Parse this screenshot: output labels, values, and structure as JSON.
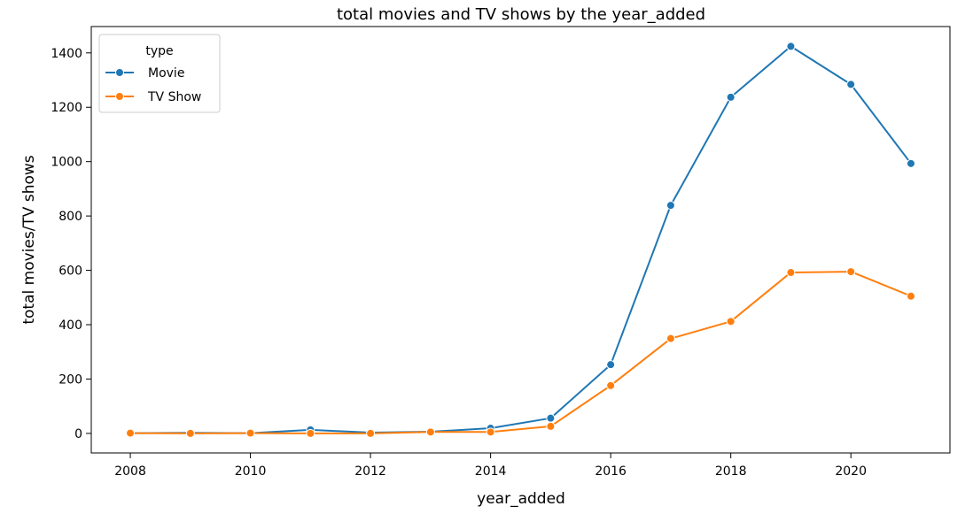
{
  "chart_data": {
    "type": "line",
    "title": "total movies and TV shows by the year_added",
    "xlabel": "year_added",
    "ylabel": "total movies/TV shows",
    "xlim": [
      2007.35,
      2021.65
    ],
    "ylim": [
      -72,
      1497
    ],
    "xticks": [
      2008,
      2010,
      2012,
      2014,
      2016,
      2018,
      2020
    ],
    "yticks": [
      0,
      200,
      400,
      600,
      800,
      1000,
      1200,
      1400
    ],
    "grid": false,
    "legend": {
      "title": "type",
      "placement": "top-left"
    },
    "x": [
      2008,
      2009,
      2010,
      2011,
      2012,
      2013,
      2014,
      2015,
      2016,
      2017,
      2018,
      2019,
      2020,
      2021
    ],
    "series": [
      {
        "name": "Movie",
        "color": "#1f77b4",
        "marker": "circle",
        "values": [
          1,
          2,
          1,
          13,
          3,
          6,
          19,
          56,
          253,
          839,
          1237,
          1424,
          1284,
          993
        ]
      },
      {
        "name": "TV Show",
        "color": "#ff7f0e",
        "marker": "circle",
        "values": [
          1,
          0,
          1,
          0,
          0,
          5,
          5,
          26,
          176,
          349,
          412,
          592,
          595,
          505
        ]
      }
    ]
  }
}
